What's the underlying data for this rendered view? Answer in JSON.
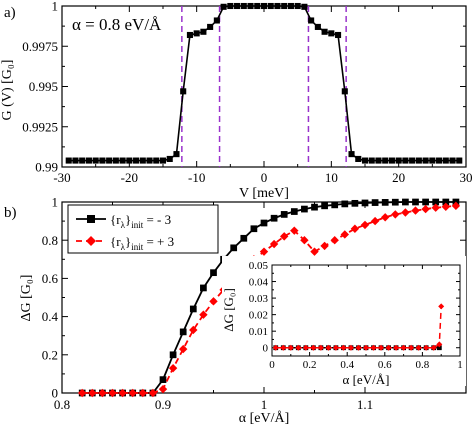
{
  "chart_data": [
    {
      "panel_label": "a)",
      "type": "line",
      "annotation": "α = 0.8 eV/Å",
      "xlabel": "V [meV]",
      "ylabel": "G (V) [G₀]",
      "xlim": [
        -30,
        30
      ],
      "ylim": [
        0.99,
        1.0
      ],
      "xticks": [
        -30,
        -20,
        -10,
        0,
        10,
        20,
        30
      ],
      "yticks": [
        0.99,
        0.9925,
        0.995,
        0.9975,
        1
      ],
      "ytick_labels": [
        "0.99",
        "0.9925",
        "0.995",
        "0.9975",
        "1"
      ],
      "vertical_dashed_lines": [
        -12.2,
        -6.6,
        6.6,
        12.2
      ],
      "series": [
        {
          "x": [
            -29,
            -28,
            -27,
            -26,
            -25,
            -24,
            -23,
            -22,
            -21,
            -20,
            -19,
            -18,
            -17,
            -16,
            -15,
            -14,
            -13,
            -12,
            -11,
            -10,
            -9,
            -8,
            -7,
            -6,
            -5,
            -4,
            -3,
            -2,
            -1,
            0,
            1,
            2,
            3,
            4,
            5,
            6,
            7,
            8,
            9,
            10,
            11,
            12,
            13,
            14,
            15,
            16,
            17,
            18,
            19,
            20,
            21,
            22,
            23,
            24,
            25,
            26,
            27,
            28,
            29
          ],
          "y": [
            0.9904,
            0.9904,
            0.9904,
            0.9904,
            0.9904,
            0.9904,
            0.9904,
            0.9904,
            0.9904,
            0.9904,
            0.9904,
            0.9904,
            0.9904,
            0.9904,
            0.9904,
            0.9905,
            0.9908,
            0.9947,
            0.9982,
            0.9983,
            0.9984,
            0.9987,
            0.9991,
            0.99995,
            1.0,
            1.0,
            1.0,
            1.0,
            1.0,
            1.0,
            1.0,
            1.0,
            1.0,
            1.0,
            1.0,
            0.99995,
            0.9991,
            0.9987,
            0.9984,
            0.9983,
            0.9982,
            0.9947,
            0.9908,
            0.9905,
            0.9904,
            0.9904,
            0.9904,
            0.9904,
            0.9904,
            0.9904,
            0.9904,
            0.9904,
            0.9904,
            0.9904,
            0.9904,
            0.9904,
            0.9904,
            0.9904,
            0.9904
          ],
          "color": "#000000",
          "marker": "square"
        }
      ]
    },
    {
      "panel_label": "b)",
      "type": "line",
      "xlabel": "α [eV/Å]",
      "ylabel": "ΔG [G₀]",
      "xlim": [
        0.8,
        1.2
      ],
      "ylim": [
        0,
        1
      ],
      "xticks": [
        0.8,
        0.9,
        1.0,
        1.1
      ],
      "xtick_labels": [
        "0.8",
        "0.9",
        "1",
        "1.1"
      ],
      "yticks": [
        0,
        0.2,
        0.4,
        0.6,
        0.8,
        1
      ],
      "ytick_labels": [
        "0",
        "0.2",
        "0.4",
        "0.6",
        "0.8",
        "1"
      ],
      "legend_position": "top-left",
      "series": [
        {
          "legend_main": "{r",
          "legend_sub1": "λ",
          "legend_mid": "}",
          "legend_sub2": "init",
          "legend_tail": " = - 3",
          "color": "#000000",
          "style": "solid",
          "marker": "square",
          "x": [
            0.82,
            0.83,
            0.84,
            0.85,
            0.86,
            0.87,
            0.88,
            0.89,
            0.9,
            0.91,
            0.92,
            0.93,
            0.94,
            0.95,
            0.96,
            0.97,
            0.98,
            0.99,
            1.0,
            1.01,
            1.02,
            1.03,
            1.04,
            1.05,
            1.06,
            1.07,
            1.08,
            1.09,
            1.1,
            1.11,
            1.12,
            1.13,
            1.14,
            1.15,
            1.16,
            1.17,
            1.18,
            1.19
          ],
          "y": [
            0,
            0,
            0,
            0,
            0,
            0,
            0,
            0,
            0.07,
            0.2,
            0.32,
            0.44,
            0.55,
            0.63,
            0.7,
            0.76,
            0.81,
            0.86,
            0.89,
            0.915,
            0.935,
            0.95,
            0.963,
            0.973,
            0.98,
            0.985,
            0.99,
            0.993,
            0.995,
            0.997,
            0.998,
            0.999,
            1.0,
            1.0,
            1.0,
            1.0,
            1.0,
            1.0
          ]
        },
        {
          "legend_main": "{r",
          "legend_sub1": "λ",
          "legend_mid": "}",
          "legend_sub2": "init",
          "legend_tail": " = + 3",
          "color": "#ff0000",
          "style": "dashed",
          "marker": "diamond",
          "x": [
            0.82,
            0.83,
            0.84,
            0.85,
            0.86,
            0.87,
            0.88,
            0.89,
            0.9,
            0.91,
            0.92,
            0.93,
            0.94,
            0.95,
            0.96,
            0.97,
            0.98,
            0.99,
            1.0,
            1.01,
            1.02,
            1.03,
            1.04,
            1.05,
            1.06,
            1.07,
            1.08,
            1.09,
            1.1,
            1.11,
            1.12,
            1.13,
            1.14,
            1.15,
            1.16,
            1.17,
            1.18,
            1.19
          ],
          "y": [
            0,
            0,
            0,
            0,
            0,
            0,
            0,
            0,
            0.02,
            0.13,
            0.23,
            0.33,
            0.41,
            0.48,
            0.54,
            0.6,
            0.65,
            0.7,
            0.74,
            0.78,
            0.82,
            0.85,
            0.8,
            0.74,
            0.77,
            0.8,
            0.83,
            0.86,
            0.88,
            0.9,
            0.92,
            0.935,
            0.945,
            0.955,
            0.963,
            0.97,
            0.975,
            0.98
          ]
        }
      ],
      "inset": {
        "type": "line",
        "xlabel": "α [eV/Å]",
        "ylabel": "ΔG [G₀]",
        "xlim": [
          0,
          1
        ],
        "ylim": [
          -0.005,
          0.05
        ],
        "xticks": [
          0,
          0.2,
          0.4,
          0.6,
          0.8,
          1
        ],
        "xtick_labels": [
          "0",
          "0.2",
          "0.4",
          "0.6",
          "0.8",
          "1"
        ],
        "yticks": [
          0,
          0.01,
          0.02,
          0.03,
          0.04,
          0.05
        ],
        "ytick_labels": [
          "0",
          "0.01",
          "0.02",
          "0.03",
          "0.04",
          "0.05"
        ],
        "series": [
          {
            "color": "#000000",
            "style": "solid",
            "marker": "square",
            "x": [
              0.02,
              0.06,
              0.1,
              0.14,
              0.18,
              0.22,
              0.26,
              0.3,
              0.34,
              0.38,
              0.42,
              0.46,
              0.5,
              0.54,
              0.58,
              0.62,
              0.66,
              0.7,
              0.74,
              0.78,
              0.82,
              0.86,
              0.89
            ],
            "y": [
              0,
              0,
              0,
              0,
              0,
              0,
              0,
              0,
              0,
              0,
              0,
              0,
              0,
              0,
              0,
              0,
              0,
              0,
              0,
              0,
              0,
              0,
              0
            ]
          },
          {
            "color": "#ff0000",
            "style": "dashed",
            "marker": "diamond",
            "x": [
              0.02,
              0.06,
              0.1,
              0.14,
              0.18,
              0.22,
              0.26,
              0.3,
              0.34,
              0.38,
              0.42,
              0.46,
              0.5,
              0.54,
              0.58,
              0.62,
              0.66,
              0.7,
              0.74,
              0.78,
              0.82,
              0.86,
              0.89,
              0.9
            ],
            "y": [
              0,
              0,
              0,
              0,
              0,
              0,
              0,
              0,
              0,
              0,
              0,
              0,
              0,
              0,
              0,
              0,
              0,
              0,
              0,
              0,
              0,
              0,
              0.002,
              0.025
            ]
          }
        ]
      }
    }
  ]
}
